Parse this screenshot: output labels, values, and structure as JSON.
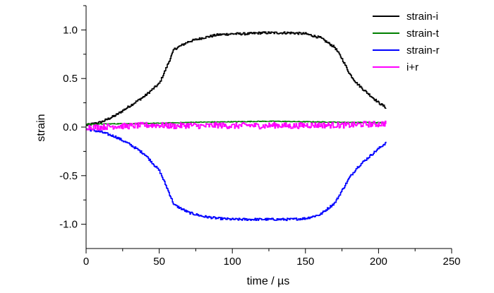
{
  "chart_data": {
    "type": "line",
    "xlabel": "time / µs",
    "ylabel": "strain",
    "xlim": [
      0,
      250
    ],
    "ylim": [
      -1.25,
      1.25
    ],
    "xticks": [
      0,
      50,
      100,
      150,
      200,
      250
    ],
    "yticks": [
      -1.0,
      -0.5,
      0.0,
      0.5,
      1.0
    ],
    "yticklabels": [
      "-1.0",
      "-0.5",
      "0.0",
      "0.5",
      "1.0"
    ],
    "grid": false,
    "legend_position": "top-right",
    "series": [
      {
        "name": "strain-i",
        "color": "#000000",
        "x": [
          0,
          10,
          20,
          30,
          40,
          50,
          55,
          60,
          70,
          80,
          90,
          100,
          110,
          120,
          130,
          140,
          150,
          160,
          170,
          175,
          180,
          185,
          190,
          200,
          205
        ],
        "y": [
          0.02,
          0.05,
          0.12,
          0.22,
          0.32,
          0.45,
          0.62,
          0.8,
          0.88,
          0.92,
          0.95,
          0.96,
          0.96,
          0.97,
          0.97,
          0.97,
          0.96,
          0.92,
          0.82,
          0.7,
          0.55,
          0.45,
          0.38,
          0.25,
          0.2
        ]
      },
      {
        "name": "strain-t",
        "color": "#008000",
        "x": [
          0,
          25,
          50,
          75,
          100,
          125,
          150,
          175,
          205
        ],
        "y": [
          0.03,
          0.035,
          0.04,
          0.05,
          0.055,
          0.06,
          0.055,
          0.05,
          0.045
        ]
      },
      {
        "name": "strain-r",
        "color": "#0000ff",
        "x": [
          0,
          10,
          20,
          30,
          40,
          50,
          55,
          60,
          70,
          80,
          90,
          100,
          110,
          120,
          130,
          140,
          150,
          160,
          170,
          175,
          180,
          185,
          190,
          200,
          205
        ],
        "y": [
          -0.02,
          -0.05,
          -0.1,
          -0.18,
          -0.28,
          -0.45,
          -0.62,
          -0.8,
          -0.88,
          -0.92,
          -0.94,
          -0.95,
          -0.95,
          -0.95,
          -0.95,
          -0.95,
          -0.94,
          -0.9,
          -0.78,
          -0.65,
          -0.52,
          -0.42,
          -0.35,
          -0.22,
          -0.16
        ]
      },
      {
        "name": "i+r",
        "color": "#ff00ff",
        "x": [
          0,
          10,
          20,
          30,
          40,
          50,
          60,
          70,
          80,
          90,
          100,
          110,
          120,
          130,
          140,
          150,
          160,
          170,
          180,
          190,
          200,
          205
        ],
        "y": [
          0.0,
          0.0,
          0.01,
          0.01,
          0.02,
          0.02,
          0.01,
          0.02,
          0.01,
          0.02,
          0.01,
          0.02,
          0.01,
          0.02,
          0.01,
          0.02,
          0.02,
          0.02,
          0.02,
          0.03,
          0.03,
          0.04
        ]
      }
    ]
  }
}
